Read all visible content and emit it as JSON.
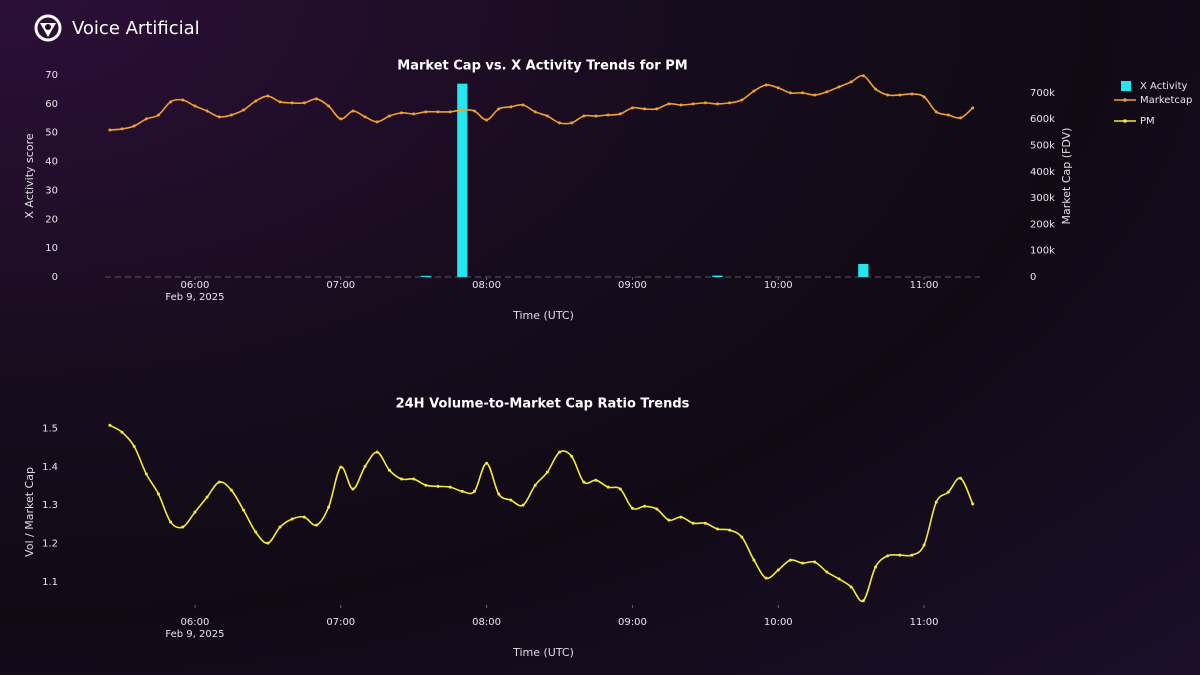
{
  "header": {
    "brand": "Voice Artificial"
  },
  "chart_data": [
    {
      "type": "combo",
      "title": "Market Cap vs. X Activity Trends for PM",
      "xlabel": "Time (UTC)",
      "ylabel": "X Activity score",
      "y2label": "Market Cap (FDV)",
      "x_date_label": "Feb 9, 2025",
      "x": [
        "2025-02-09T05:25",
        "2025-02-09T05:30",
        "2025-02-09T05:35",
        "2025-02-09T05:40",
        "2025-02-09T05:45",
        "2025-02-09T05:50",
        "2025-02-09T05:55",
        "2025-02-09T06:00",
        "2025-02-09T06:05",
        "2025-02-09T06:10",
        "2025-02-09T06:15",
        "2025-02-09T06:20",
        "2025-02-09T06:25",
        "2025-02-09T06:30",
        "2025-02-09T06:35",
        "2025-02-09T06:40",
        "2025-02-09T06:45",
        "2025-02-09T06:50",
        "2025-02-09T06:55",
        "2025-02-09T07:00",
        "2025-02-09T07:05",
        "2025-02-09T07:10",
        "2025-02-09T07:15",
        "2025-02-09T07:20",
        "2025-02-09T07:25",
        "2025-02-09T07:30",
        "2025-02-09T07:35",
        "2025-02-09T07:40",
        "2025-02-09T07:45",
        "2025-02-09T07:50",
        "2025-02-09T07:55",
        "2025-02-09T08:00",
        "2025-02-09T08:05",
        "2025-02-09T08:10",
        "2025-02-09T08:15",
        "2025-02-09T08:20",
        "2025-02-09T08:25",
        "2025-02-09T08:30",
        "2025-02-09T08:35",
        "2025-02-09T08:40",
        "2025-02-09T08:45",
        "2025-02-09T08:50",
        "2025-02-09T08:55",
        "2025-02-09T09:00",
        "2025-02-09T09:05",
        "2025-02-09T09:10",
        "2025-02-09T09:15",
        "2025-02-09T09:20",
        "2025-02-09T09:25",
        "2025-02-09T09:30",
        "2025-02-09T09:35",
        "2025-02-09T09:40",
        "2025-02-09T09:45",
        "2025-02-09T09:50",
        "2025-02-09T09:55",
        "2025-02-09T10:00",
        "2025-02-09T10:05",
        "2025-02-09T10:10",
        "2025-02-09T10:15",
        "2025-02-09T10:20",
        "2025-02-09T10:25",
        "2025-02-09T10:30",
        "2025-02-09T10:35",
        "2025-02-09T10:40",
        "2025-02-09T10:45",
        "2025-02-09T10:50",
        "2025-02-09T10:55",
        "2025-02-09T11:00",
        "2025-02-09T11:05",
        "2025-02-09T11:10",
        "2025-02-09T11:15",
        "2025-02-09T11:20"
      ],
      "series": [
        {
          "name": "X Activity",
          "type": "bar",
          "color": "#22e8ee",
          "values": [
            0,
            0,
            0,
            0,
            0,
            0,
            0,
            0,
            0,
            0,
            0,
            0,
            0,
            0,
            0,
            0,
            0,
            0,
            0,
            0,
            0,
            0,
            0,
            0,
            0,
            0,
            0.4,
            0,
            0,
            67,
            0,
            0,
            0,
            0,
            0,
            0,
            0,
            0,
            0,
            0,
            0,
            0,
            0,
            0,
            0,
            0,
            0,
            0,
            0,
            0,
            0.5,
            0,
            0,
            0,
            0,
            0,
            0,
            0,
            0,
            0,
            0,
            0,
            4.5,
            0,
            0,
            0,
            0,
            0,
            0,
            0,
            0,
            0
          ]
        },
        {
          "name": "Marketcap",
          "type": "line",
          "axis": "y2",
          "color": "#f0a030",
          "values": [
            559000,
            563000,
            574000,
            601000,
            616000,
            666000,
            673000,
            650000,
            631000,
            609000,
            616000,
            635000,
            669000,
            688000,
            666000,
            662000,
            662000,
            677000,
            650000,
            601000,
            631000,
            609000,
            590000,
            612000,
            624000,
            620000,
            628000,
            628000,
            628000,
            635000,
            631000,
            597000,
            639000,
            647000,
            654000,
            628000,
            612000,
            586000,
            586000,
            612000,
            612000,
            616000,
            620000,
            643000,
            639000,
            639000,
            658000,
            654000,
            658000,
            662000,
            658000,
            662000,
            673000,
            707000,
            730000,
            719000,
            700000,
            700000,
            692000,
            704000,
            723000,
            742000,
            765000,
            715000,
            692000,
            692000,
            696000,
            685000,
            628000,
            616000,
            605000,
            643000
          ]
        }
      ],
      "xlim": [
        "2025-02-09T05:23",
        "2025-02-09T11:23"
      ],
      "xticks": [
        {
          "value": "2025-02-09T06:00",
          "label": "06:00"
        },
        {
          "value": "2025-02-09T07:00",
          "label": "07:00"
        },
        {
          "value": "2025-02-09T08:00",
          "label": "08:00"
        },
        {
          "value": "2025-02-09T09:00",
          "label": "09:00"
        },
        {
          "value": "2025-02-09T10:00",
          "label": "10:00"
        },
        {
          "value": "2025-02-09T11:00",
          "label": "11:00"
        }
      ],
      "ylim": [
        0,
        70
      ],
      "yticks": [
        0,
        10,
        20,
        30,
        40,
        50,
        60,
        70
      ],
      "y2lim": [
        0,
        768000
      ],
      "y2ticks": [
        0,
        {
          "value": 100000,
          "label": "100k"
        },
        {
          "value": 200000,
          "label": "200k"
        },
        {
          "value": 300000,
          "label": "300k"
        },
        {
          "value": 400000,
          "label": "400k"
        },
        {
          "value": 500000,
          "label": "500k"
        },
        {
          "value": 600000,
          "label": "600k"
        },
        {
          "value": 700000,
          "label": "700k"
        }
      ],
      "grid": false,
      "legend": "right"
    },
    {
      "type": "line",
      "title": "24H Volume-to-Market Cap Ratio Trends",
      "xlabel": "Time (UTC)",
      "ylabel": "Vol / Market Cap",
      "x_date_label": "Feb 9, 2025",
      "x": [
        "2025-02-09T05:25",
        "2025-02-09T05:30",
        "2025-02-09T05:35",
        "2025-02-09T05:40",
        "2025-02-09T05:45",
        "2025-02-09T05:50",
        "2025-02-09T05:55",
        "2025-02-09T06:00",
        "2025-02-09T06:05",
        "2025-02-09T06:10",
        "2025-02-09T06:15",
        "2025-02-09T06:20",
        "2025-02-09T06:25",
        "2025-02-09T06:30",
        "2025-02-09T06:35",
        "2025-02-09T06:40",
        "2025-02-09T06:45",
        "2025-02-09T06:50",
        "2025-02-09T06:55",
        "2025-02-09T07:00",
        "2025-02-09T07:05",
        "2025-02-09T07:10",
        "2025-02-09T07:15",
        "2025-02-09T07:20",
        "2025-02-09T07:25",
        "2025-02-09T07:30",
        "2025-02-09T07:35",
        "2025-02-09T07:40",
        "2025-02-09T07:45",
        "2025-02-09T07:50",
        "2025-02-09T07:55",
        "2025-02-09T08:00",
        "2025-02-09T08:05",
        "2025-02-09T08:10",
        "2025-02-09T08:15",
        "2025-02-09T08:20",
        "2025-02-09T08:25",
        "2025-02-09T08:30",
        "2025-02-09T08:35",
        "2025-02-09T08:40",
        "2025-02-09T08:45",
        "2025-02-09T08:50",
        "2025-02-09T08:55",
        "2025-02-09T09:00",
        "2025-02-09T09:05",
        "2025-02-09T09:10",
        "2025-02-09T09:15",
        "2025-02-09T09:20",
        "2025-02-09T09:25",
        "2025-02-09T09:30",
        "2025-02-09T09:35",
        "2025-02-09T09:40",
        "2025-02-09T09:45",
        "2025-02-09T09:50",
        "2025-02-09T09:55",
        "2025-02-09T10:00",
        "2025-02-09T10:05",
        "2025-02-09T10:10",
        "2025-02-09T10:15",
        "2025-02-09T10:20",
        "2025-02-09T10:25",
        "2025-02-09T10:30",
        "2025-02-09T10:35",
        "2025-02-09T10:40",
        "2025-02-09T10:45",
        "2025-02-09T10:50",
        "2025-02-09T10:55",
        "2025-02-09T11:00",
        "2025-02-09T11:05",
        "2025-02-09T11:10",
        "2025-02-09T11:15",
        "2025-02-09T11:20"
      ],
      "series": [
        {
          "name": "PM",
          "type": "line",
          "color": "#f5ea3a",
          "values": [
            1.508,
            1.49,
            1.453,
            1.381,
            1.329,
            1.256,
            1.243,
            1.282,
            1.321,
            1.36,
            1.339,
            1.287,
            1.23,
            1.201,
            1.243,
            1.264,
            1.269,
            1.248,
            1.295,
            1.399,
            1.342,
            1.401,
            1.438,
            1.391,
            1.368,
            1.368,
            1.352,
            1.349,
            1.347,
            1.336,
            1.336,
            1.409,
            1.329,
            1.313,
            1.3,
            1.352,
            1.386,
            1.438,
            1.427,
            1.36,
            1.365,
            1.347,
            1.342,
            1.292,
            1.297,
            1.29,
            1.261,
            1.269,
            1.253,
            1.253,
            1.238,
            1.235,
            1.217,
            1.157,
            1.11,
            1.131,
            1.157,
            1.149,
            1.152,
            1.126,
            1.108,
            1.087,
            1.051,
            1.139,
            1.168,
            1.17,
            1.17,
            1.196,
            1.308,
            1.334,
            1.37,
            1.303
          ]
        }
      ],
      "xlim": [
        "2025-02-09T05:23",
        "2025-02-09T11:23"
      ],
      "xticks": [
        {
          "value": "2025-02-09T06:00",
          "label": "06:00"
        },
        {
          "value": "2025-02-09T07:00",
          "label": "07:00"
        },
        {
          "value": "2025-02-09T08:00",
          "label": "08:00"
        },
        {
          "value": "2025-02-09T09:00",
          "label": "09:00"
        },
        {
          "value": "2025-02-09T10:00",
          "label": "10:00"
        },
        {
          "value": "2025-02-09T11:00",
          "label": "11:00"
        }
      ],
      "ylim": [
        1.04,
        1.54
      ],
      "yticks": [
        1.1,
        1.2,
        1.3,
        1.4,
        1.5
      ],
      "grid": false
    }
  ]
}
